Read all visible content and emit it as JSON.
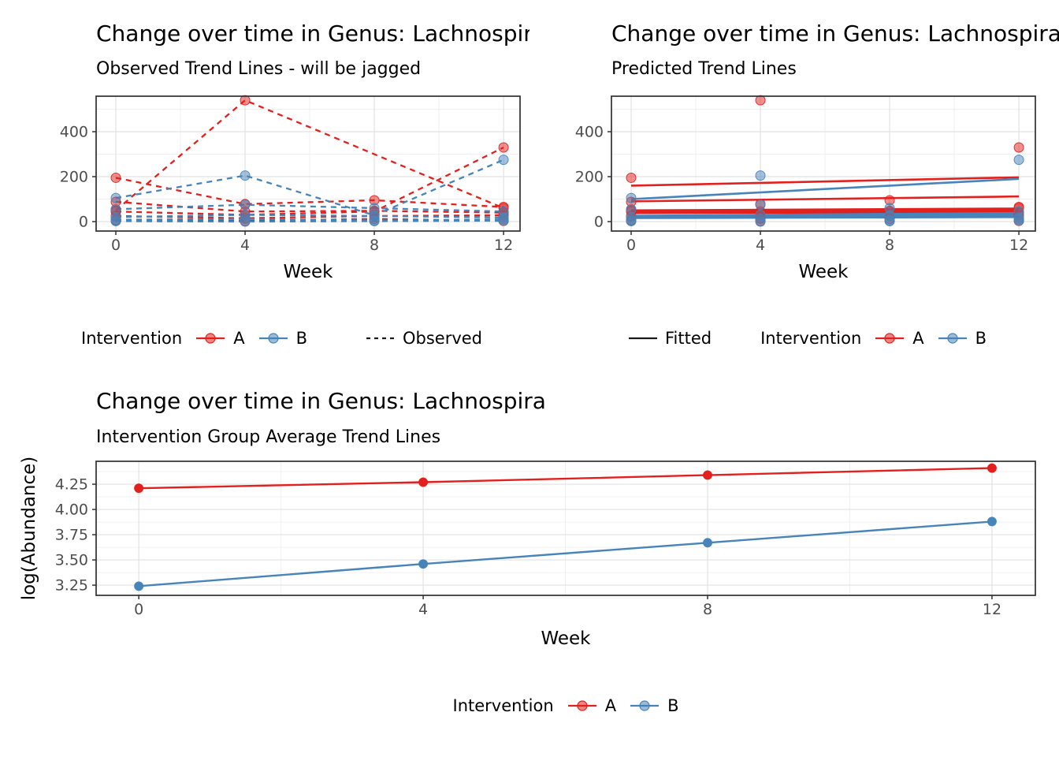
{
  "colors": {
    "A": "#e2201d",
    "B": "#4784ba",
    "neutral_line": "#1a1a1a",
    "grid_major": "#e2e2e2",
    "grid_minor": "#f0f0f0",
    "panel_border": "#2f2f2f",
    "tick_text": "#4d4d4d"
  },
  "chart_data": [
    {
      "key": "observed",
      "type": "line",
      "title": "Change over time in Genus: Lachnospira",
      "subtitle": "Observed Trend Lines - will be jagged",
      "xlabel": "Week",
      "ylabel": "",
      "x_ticks": [
        0,
        4,
        8,
        12
      ],
      "x_minor": [
        2,
        6,
        10
      ],
      "y_ticks": [
        0,
        200,
        400
      ],
      "y_tick_labels": [
        "0",
        "200",
        "400"
      ],
      "y_minor": [
        100,
        300,
        500
      ],
      "xlim": [
        -0.61,
        12.51
      ],
      "ylim": [
        -42,
        558
      ],
      "line_style": "dashed",
      "dash": true,
      "lw": 2.3,
      "show_points": true,
      "point_r": 6,
      "point_alpha": 0.5,
      "grid": true,
      "legend_position": "bottom",
      "series": [
        {
          "group": "A",
          "x": [
            0,
            4,
            8,
            12
          ],
          "y": [
            195,
            78,
            95,
            65
          ]
        },
        {
          "group": "A",
          "x": [
            0,
            4,
            12
          ],
          "y": [
            50,
            540,
            60
          ]
        },
        {
          "group": "A",
          "x": [
            0,
            4,
            8,
            12
          ],
          "y": [
            88,
            45,
            48,
            40
          ]
        },
        {
          "group": "A",
          "x": [
            0,
            4,
            8,
            12
          ],
          "y": [
            45,
            30,
            45,
            330
          ]
        },
        {
          "group": "A",
          "x": [
            0,
            4,
            8,
            12
          ],
          "y": [
            25,
            15,
            25,
            28
          ]
        },
        {
          "group": "A",
          "x": [
            0,
            4,
            8,
            12
          ],
          "y": [
            5,
            3,
            12,
            3
          ]
        },
        {
          "group": "B",
          "x": [
            0,
            4,
            8,
            12
          ],
          "y": [
            105,
            205,
            28,
            275
          ]
        },
        {
          "group": "B",
          "x": [
            0,
            4,
            8,
            12
          ],
          "y": [
            55,
            75,
            60,
            45
          ]
        },
        {
          "group": "B",
          "x": [
            0,
            4,
            8,
            12
          ],
          "y": [
            20,
            30,
            25,
            18
          ]
        },
        {
          "group": "B",
          "x": [
            0,
            4,
            8,
            12
          ],
          "y": [
            8,
            12,
            5,
            10
          ]
        },
        {
          "group": "B",
          "x": [
            0,
            4,
            8,
            12
          ],
          "y": [
            2,
            0,
            2,
            4
          ]
        }
      ],
      "legend": {
        "title": "Intervention",
        "item_a": "A",
        "item_b": "B",
        "linetype_label": "Observed"
      }
    },
    {
      "key": "predicted",
      "type": "line",
      "title": "Change over time in Genus: Lachnospira",
      "subtitle": "Predicted Trend Lines",
      "xlabel": "Week",
      "ylabel": "",
      "x_ticks": [
        0,
        4,
        8,
        12
      ],
      "x_minor": [
        2,
        6,
        10
      ],
      "y_ticks": [
        0,
        200,
        400
      ],
      "y_tick_labels": [
        "0",
        "200",
        "400"
      ],
      "y_minor": [
        100,
        300,
        500
      ],
      "xlim": [
        -0.61,
        12.51
      ],
      "ylim": [
        -42,
        558
      ],
      "line_style": "solid",
      "dash": false,
      "lw": 2.6,
      "show_points": false,
      "points_from": "observed",
      "point_r": 6,
      "point_alpha": 0.5,
      "grid": true,
      "legend_position": "bottom",
      "lines": [
        {
          "group": "A",
          "x": [
            0,
            12
          ],
          "y": [
            160,
            197
          ]
        },
        {
          "group": "A",
          "x": [
            0,
            12
          ],
          "y": [
            90,
            112
          ]
        },
        {
          "group": "A",
          "x": [
            0,
            12
          ],
          "y": [
            50,
            58
          ]
        },
        {
          "group": "A",
          "x": [
            0,
            12
          ],
          "y": [
            46,
            50
          ]
        },
        {
          "group": "A",
          "x": [
            0,
            12
          ],
          "y": [
            42,
            46
          ]
        },
        {
          "group": "A",
          "x": [
            0,
            12
          ],
          "y": [
            38,
            42
          ]
        },
        {
          "group": "B",
          "x": [
            0,
            12
          ],
          "y": [
            100,
            190
          ]
        },
        {
          "group": "B",
          "x": [
            0,
            12
          ],
          "y": [
            26,
            38
          ]
        },
        {
          "group": "B",
          "x": [
            0,
            12
          ],
          "y": [
            22,
            30
          ]
        },
        {
          "group": "B",
          "x": [
            0,
            12
          ],
          "y": [
            20,
            24
          ]
        },
        {
          "group": "B",
          "x": [
            0,
            12
          ],
          "y": [
            16,
            20
          ]
        }
      ],
      "legend": {
        "fitted_label": "Fitted",
        "title": "Intervention",
        "item_a": "A",
        "item_b": "B"
      }
    },
    {
      "key": "average",
      "type": "line",
      "title": "Change over time in Genus: Lachnospira",
      "subtitle": "Intervention Group Average Trend Lines",
      "xlabel": "Week",
      "ylabel": "log(Abundance)",
      "x_ticks": [
        0,
        4,
        8,
        12
      ],
      "x_minor": [
        2,
        6,
        10
      ],
      "y_ticks": [
        3.25,
        3.5,
        3.75,
        4.0,
        4.25
      ],
      "y_tick_labels": [
        "3.25",
        "3.50",
        "3.75",
        "4.00",
        "4.25"
      ],
      "y_minor": [
        3.125,
        3.375,
        3.625,
        3.875,
        4.125,
        4.375
      ],
      "xlim": [
        -0.6,
        12.61
      ],
      "ylim": [
        3.149,
        4.477
      ],
      "line_style": "solid",
      "dash": false,
      "lw": 2.4,
      "show_points": true,
      "point_r": 5.5,
      "point_alpha": 1,
      "grid": true,
      "legend_position": "bottom",
      "series": [
        {
          "group": "A",
          "x": [
            0,
            4,
            8,
            12
          ],
          "y": [
            4.21,
            4.27,
            4.34,
            4.41
          ]
        },
        {
          "group": "B",
          "x": [
            0,
            4,
            8,
            12
          ],
          "y": [
            3.24,
            3.46,
            3.67,
            3.88
          ]
        }
      ],
      "legend": {
        "title": "Intervention",
        "item_a": "A",
        "item_b": "B"
      }
    }
  ]
}
